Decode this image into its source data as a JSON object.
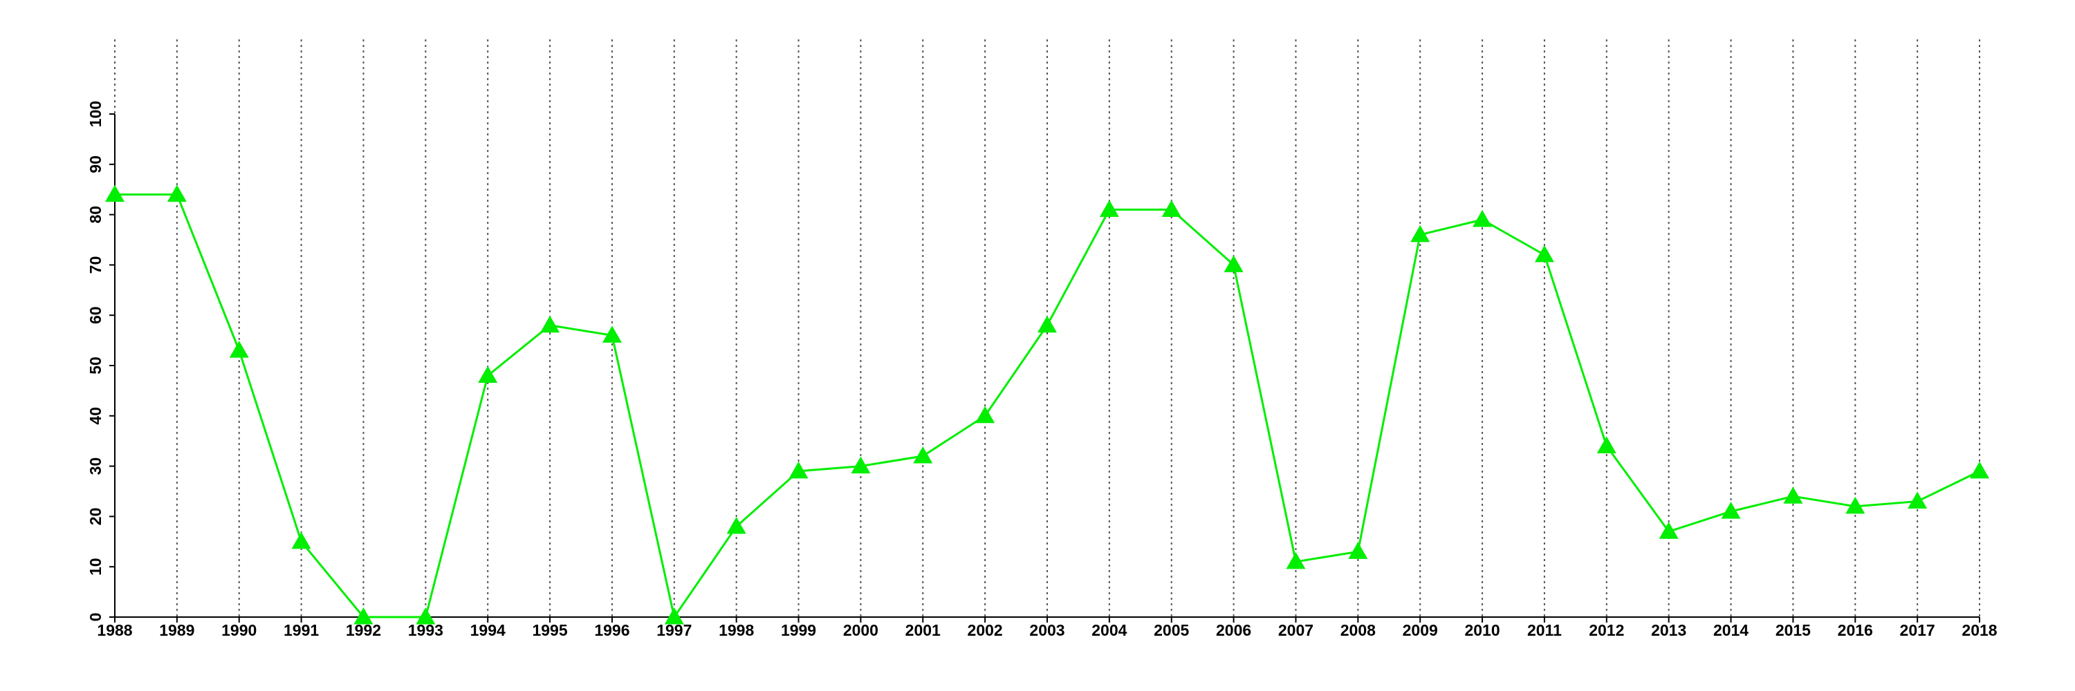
{
  "chart_data": {
    "type": "line",
    "x": [
      1988,
      1989,
      1990,
      1991,
      1992,
      1993,
      1994,
      1995,
      1996,
      1997,
      1998,
      1999,
      2000,
      2001,
      2002,
      2003,
      2004,
      2005,
      2006,
      2007,
      2008,
      2009,
      2010,
      2011,
      2012,
      2013,
      2014,
      2015,
      2016,
      2017,
      2018
    ],
    "values": [
      84,
      84,
      53,
      15,
      0,
      0,
      48,
      58,
      56,
      0,
      18,
      29,
      30,
      32,
      40,
      58,
      81,
      81,
      70,
      11,
      13,
      76,
      79,
      72,
      34,
      17,
      21,
      24,
      22,
      23,
      29
    ],
    "color": "#00ee00",
    "marker": "triangle",
    "xlim": [
      1988,
      2018
    ],
    "xticks": [
      1988,
      1989,
      1990,
      1991,
      1992,
      1993,
      1994,
      1995,
      1996,
      1997,
      1998,
      1999,
      2000,
      2001,
      2002,
      2003,
      2004,
      2005,
      2006,
      2007,
      2008,
      2009,
      2010,
      2011,
      2012,
      2013,
      2014,
      2015,
      2016,
      2017,
      2018
    ],
    "ylim": [
      0,
      100
    ],
    "yticks": [
      0,
      10,
      20,
      30,
      40,
      50,
      60,
      70,
      80,
      90,
      100
    ],
    "grid": "x"
  }
}
